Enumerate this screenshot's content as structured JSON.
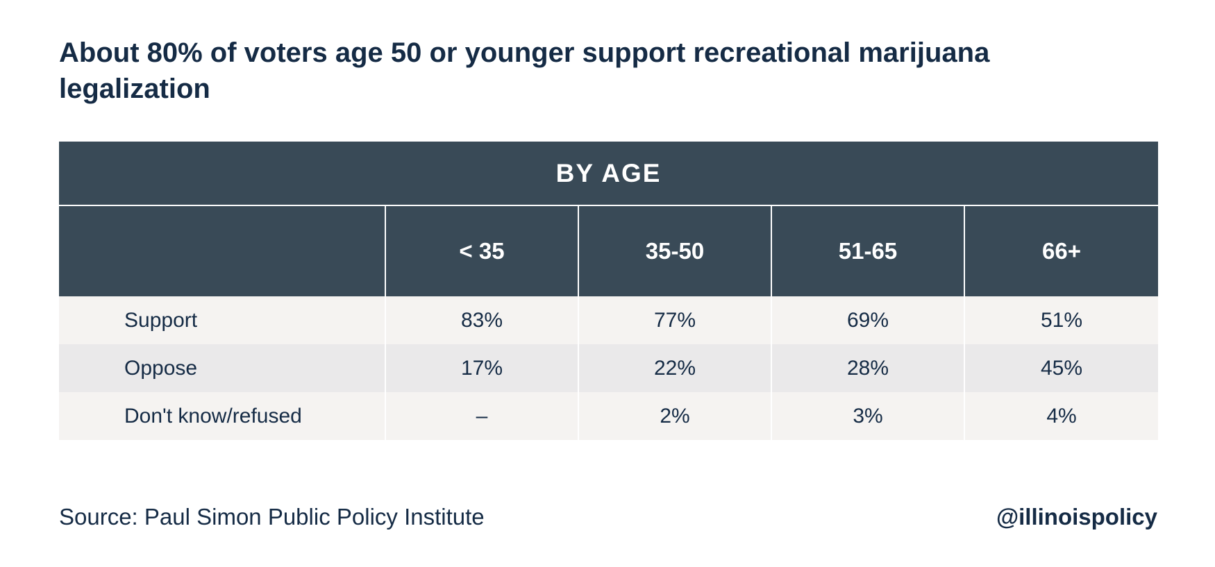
{
  "title": "About 80% of voters age 50 or younger support recreational marijuana legalization",
  "source": "Source: Paul Simon Public Policy Institute",
  "handle": "@illinoispolicy",
  "colors": {
    "header_bg": "#394a57",
    "row_light": "#f5f3f1",
    "row_dark": "#eae9ea",
    "text": "#152b45"
  },
  "chart_data": {
    "type": "table",
    "group_header": "BY AGE",
    "columns": [
      "",
      "< 35",
      "35-50",
      "51-65",
      "66+"
    ],
    "rows": [
      {
        "label": "Support",
        "values": [
          "83%",
          "77%",
          "69%",
          "51%"
        ]
      },
      {
        "label": "Oppose",
        "values": [
          "17%",
          "22%",
          "28%",
          "45%"
        ]
      },
      {
        "label": "Don't know/refused",
        "values": [
          "–",
          "2%",
          "3%",
          "4%"
        ]
      }
    ]
  }
}
